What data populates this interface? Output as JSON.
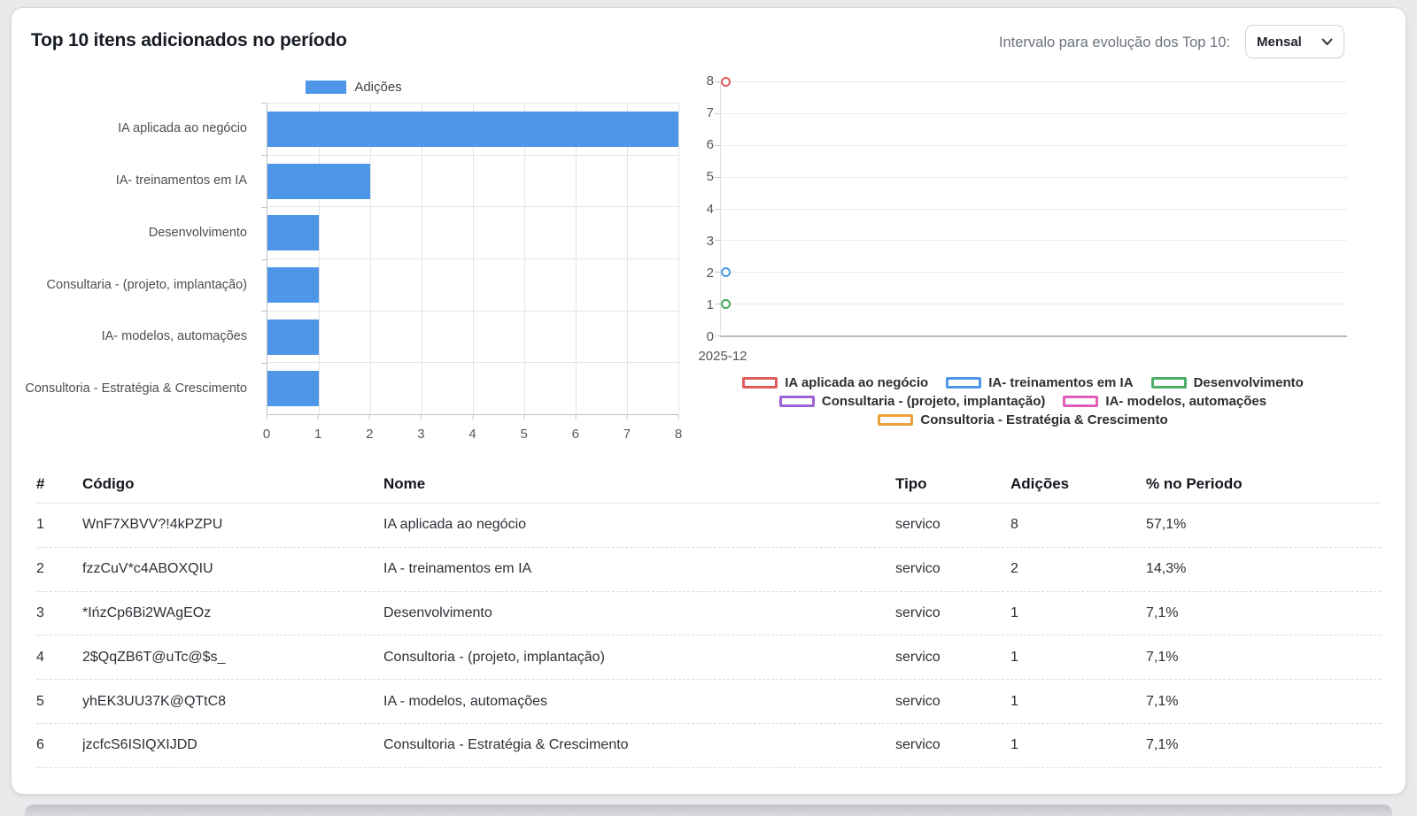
{
  "header": {
    "title": "Top 10 itens adicionados no período",
    "interval_label": "Intervalo para evolução dos Top 10:",
    "interval_value": "Mensal"
  },
  "chart_data": [
    {
      "id": "top10-bar",
      "type": "bar",
      "orientation": "horizontal",
      "legend": [
        "Adições"
      ],
      "legend_position": "top",
      "bar_color": "#4e96e8",
      "categories": [
        "IA aplicada ao negócio",
        "IA- treinamentos em IA",
        "Desenvolvimento",
        "Consultaria - (projeto, implantação)",
        "IA- modelos, automações",
        "Consultoria - Estratégia & Crescimento"
      ],
      "values": [
        8,
        2,
        1,
        1,
        1,
        1
      ],
      "xlim": [
        0,
        8
      ],
      "x_ticks": [
        0,
        1,
        2,
        3,
        4,
        5,
        6,
        7,
        8
      ],
      "grid": true
    },
    {
      "id": "evolution-line",
      "type": "line",
      "x_categories": [
        "2025-12"
      ],
      "ylim": [
        0,
        8
      ],
      "y_ticks": [
        8,
        7,
        6,
        5,
        4,
        3,
        2,
        1,
        0
      ],
      "grid": true,
      "legend_position": "bottom",
      "series": [
        {
          "name": "IA aplicada ao negócio",
          "color": "#e05c5c",
          "values": [
            8
          ]
        },
        {
          "name": "IA- treinamentos em IA",
          "color": "#4d96e8",
          "values": [
            2
          ]
        },
        {
          "name": "Desenvolvimento",
          "color": "#4caf68",
          "values": [
            1
          ]
        },
        {
          "name": "Consultaria - (projeto, implantação)",
          "color": "#9d62d6",
          "values": [
            1
          ]
        },
        {
          "name": "IA- modelos, automações",
          "color": "#e05cb8",
          "values": [
            1
          ]
        },
        {
          "name": "Consultoria - Estratégia & Crescimento",
          "color": "#e9a23b",
          "values": [
            1
          ]
        }
      ],
      "legend_rows": [
        [
          0,
          1,
          2
        ],
        [
          3,
          4
        ],
        [
          5
        ]
      ],
      "draw_order": [
        0,
        1,
        3,
        4,
        5,
        2
      ]
    }
  ],
  "table": {
    "headers": [
      "#",
      "Código",
      "Nome",
      "Tipo",
      "Adições",
      "% no Periodo"
    ],
    "rows": [
      {
        "n": "1",
        "codigo": "WnF7XBVV?!4kPZPU",
        "nome": "IA aplicada ao negócio",
        "tipo": "servico",
        "adicoes": "8",
        "pct": "57,1%"
      },
      {
        "n": "2",
        "codigo": "fzzCuV*c4ABOXQIU",
        "nome": "IA - treinamentos em IA",
        "tipo": "servico",
        "adicoes": "2",
        "pct": "14,3%"
      },
      {
        "n": "3",
        "codigo": "*IńzCp6Bi2WAgEOz",
        "nome": "Desenvolvimento",
        "tipo": "servico",
        "adicoes": "1",
        "pct": "7,1%"
      },
      {
        "n": "4",
        "codigo": "2$QqZB6T@uTc@$s_",
        "nome": "Consultoria - (projeto, implantação)",
        "tipo": "servico",
        "adicoes": "1",
        "pct": "7,1%"
      },
      {
        "n": "5",
        "codigo": "yhEK3UU37K@QTtC8",
        "nome": "IA - modelos, automações",
        "tipo": "servico",
        "adicoes": "1",
        "pct": "7,1%"
      },
      {
        "n": "6",
        "codigo": "jzcfcS6ISIQXIJDD",
        "nome": "Consultoria - Estratégia & Crescimento",
        "tipo": "servico",
        "adicoes": "1",
        "pct": "7,1%"
      }
    ]
  }
}
